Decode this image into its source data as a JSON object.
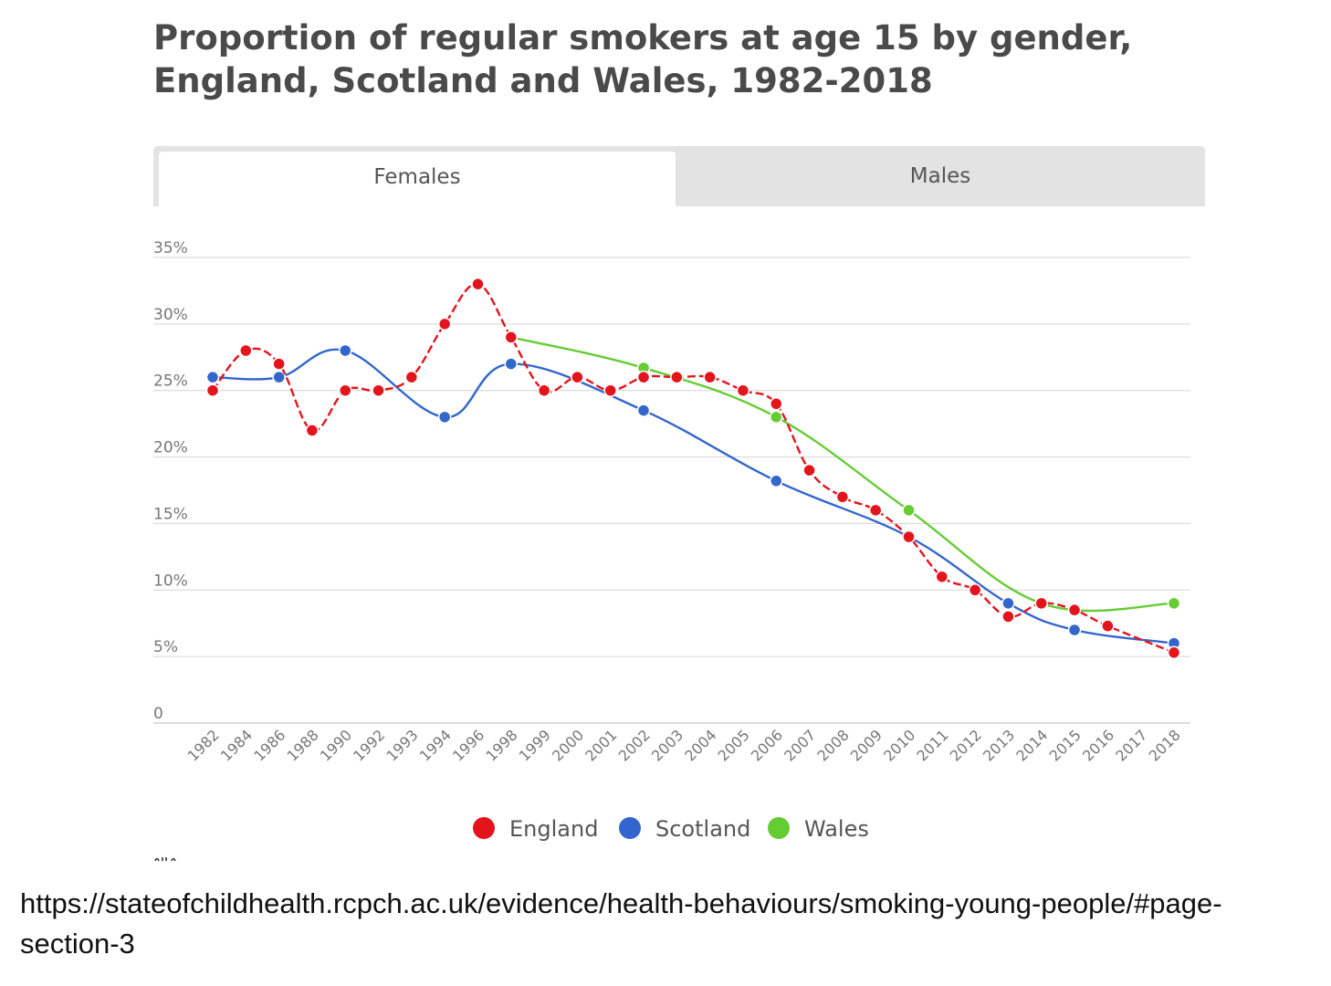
{
  "title_lines": [
    "Proportion of regular smokers at age 15 by gender,",
    "England, Scotland and Wales, 1982-2018"
  ],
  "tabs": [
    {
      "label": "Females",
      "active": true
    },
    {
      "label": "Males",
      "active": false
    }
  ],
  "chart_data": {
    "type": "line",
    "title": "",
    "xlabel": "",
    "ylabel": "",
    "categories": [
      "1982",
      "1984",
      "1986",
      "1988",
      "1990",
      "1992",
      "1993",
      "1994",
      "1996",
      "1998",
      "1999",
      "2000",
      "2001",
      "2002",
      "2003",
      "2004",
      "2005",
      "2006",
      "2007",
      "2008",
      "2009",
      "2010",
      "2011",
      "2012",
      "2013",
      "2014",
      "2015",
      "2016",
      "2017",
      "2018"
    ],
    "y_ticks": [
      "0",
      "5%",
      "10%",
      "15%",
      "20%",
      "25%",
      "30%",
      "35%"
    ],
    "ylim": [
      0,
      35
    ],
    "grid": "horizontal",
    "legend_position": "bottom-center",
    "series": [
      {
        "name": "England",
        "color": "#e3141c",
        "line_style": "dashed",
        "values": [
          25,
          28,
          27,
          22,
          25,
          25,
          26,
          30,
          33,
          29,
          25,
          26,
          25,
          26,
          26,
          26,
          25,
          24,
          19,
          17,
          16,
          14,
          11,
          10,
          8,
          9,
          8.5,
          7.3,
          null,
          5.3
        ]
      },
      {
        "name": "Scotland",
        "color": "#3366cc",
        "line_style": "solid",
        "values": [
          26,
          null,
          26,
          null,
          28,
          null,
          null,
          23,
          null,
          27,
          null,
          null,
          null,
          23.5,
          null,
          null,
          null,
          18.2,
          null,
          null,
          null,
          14,
          null,
          null,
          9,
          null,
          7,
          null,
          null,
          6
        ]
      },
      {
        "name": "Wales",
        "color": "#66cc33",
        "line_style": "solid",
        "values": [
          null,
          null,
          null,
          null,
          null,
          null,
          null,
          null,
          null,
          29,
          null,
          null,
          null,
          26.7,
          null,
          null,
          null,
          23,
          null,
          null,
          null,
          16,
          null,
          null,
          null,
          9,
          null,
          null,
          null,
          9
        ]
      }
    ]
  },
  "source_text": "https://stateofchildhealth.rcpch.ac.uk/evidence/health-behaviours/smoking-young-people/#page-section-3"
}
